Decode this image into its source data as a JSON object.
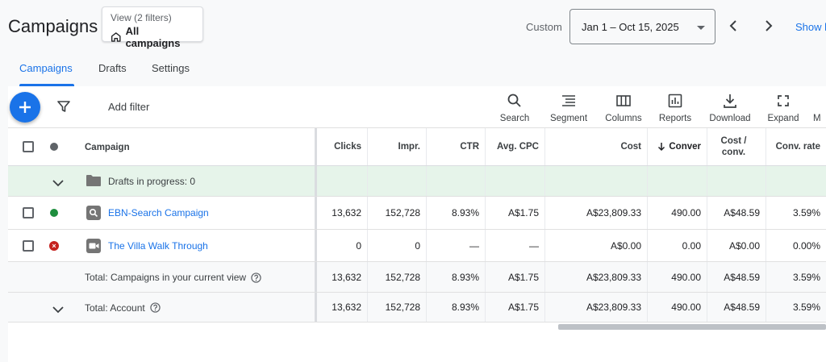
{
  "header": {
    "title": "Campaigns",
    "view_line1": "View (2 filters)",
    "view_line2": "All campaigns",
    "date_mode": "Custom",
    "date_range": "Jan 1 – Oct 15, 2025",
    "show_link": "Show l"
  },
  "tabs": [
    {
      "label": "Campaigns",
      "active": true
    },
    {
      "label": "Drafts",
      "active": false
    },
    {
      "label": "Settings",
      "active": false
    }
  ],
  "toolbar": {
    "add_filter": "Add filter",
    "tools": [
      {
        "label": "Search",
        "icon": "search-icon"
      },
      {
        "label": "Segment",
        "icon": "segment-icon"
      },
      {
        "label": "Columns",
        "icon": "columns-icon"
      },
      {
        "label": "Reports",
        "icon": "reports-icon"
      },
      {
        "label": "Download",
        "icon": "download-icon"
      },
      {
        "label": "Expand",
        "icon": "expand-icon"
      },
      {
        "label": "M",
        "icon": "more-icon"
      }
    ]
  },
  "table": {
    "columns": {
      "campaign": "Campaign",
      "clicks": "Clicks",
      "impr": "Impr.",
      "ctr": "CTR",
      "avg_cpc": "Avg. CPC",
      "cost": "Cost",
      "conversions": "Conver",
      "cost_per_conv_1": "Cost /",
      "cost_per_conv_2": "conv.",
      "conv_rate": "Conv. rate"
    },
    "drafts_label": "Drafts in progress: 0",
    "rows": [
      {
        "name": "EBN-Search Campaign",
        "status": "enabled",
        "status_color": "#1e8e3e",
        "type_icon": "search-icon",
        "clicks": "13,632",
        "impr": "152,728",
        "ctr": "8.93%",
        "avg_cpc": "A$1.75",
        "cost": "A$23,809.33",
        "conversions": "490.00",
        "cost_per_conv": "A$48.59",
        "conv_rate": "3.59%"
      },
      {
        "name": "The Villa Walk Through",
        "status": "removed",
        "status_color": "#c5221f",
        "type_icon": "video-icon",
        "clicks": "0",
        "impr": "0",
        "ctr": "—",
        "avg_cpc": "—",
        "cost": "A$0.00",
        "conversions": "0.00",
        "cost_per_conv": "A$0.00",
        "conv_rate": "0.00%"
      }
    ],
    "totals": [
      {
        "label": "Total: Campaigns in your current view",
        "clicks": "13,632",
        "impr": "152,728",
        "ctr": "8.93%",
        "avg_cpc": "A$1.75",
        "cost": "A$23,809.33",
        "conversions": "490.00",
        "cost_per_conv": "A$48.59",
        "conv_rate": "3.59%"
      },
      {
        "label": "Total: Account",
        "clicks": "13,632",
        "impr": "152,728",
        "ctr": "8.93%",
        "avg_cpc": "A$1.75",
        "cost": "A$23,809.33",
        "conversions": "490.00",
        "cost_per_conv": "A$48.59",
        "conv_rate": "3.59%"
      }
    ]
  },
  "colors": {
    "accent": "#1a73e8",
    "draft_row": "#e6f4ea"
  }
}
